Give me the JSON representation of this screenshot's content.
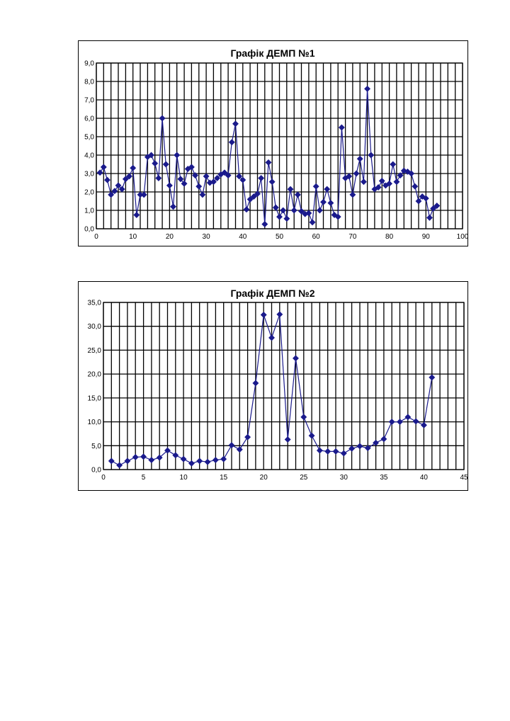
{
  "chart_data": [
    {
      "type": "scatter",
      "title": "Графік ДЕМП №1",
      "xlabel": "",
      "ylabel": "",
      "xlim": [
        0,
        100
      ],
      "ylim": [
        0,
        9
      ],
      "xticks": [
        0,
        10,
        20,
        30,
        40,
        50,
        60,
        70,
        80,
        90,
        100
      ],
      "yticks": [
        "0,0",
        "1,0",
        "2,0",
        "3,0",
        "4,0",
        "5,0",
        "6,0",
        "7,0",
        "8,0",
        "9,0"
      ],
      "grid": true,
      "legend": "none",
      "color": "#1a1a8c",
      "series": [
        {
          "x": [
            1,
            2,
            3,
            4,
            5,
            6,
            7,
            8,
            9,
            10,
            11,
            12,
            13,
            14,
            15,
            16,
            17,
            18,
            19,
            20,
            21,
            22,
            23,
            24,
            25,
            26,
            27,
            28,
            29,
            30,
            31,
            32,
            33,
            34,
            35,
            36,
            37,
            38,
            39,
            40,
            41,
            42,
            43,
            44,
            45,
            46,
            47,
            48,
            49,
            50,
            51,
            52,
            53,
            54,
            55,
            56,
            57,
            58,
            59,
            60,
            61,
            62,
            63,
            64,
            65,
            66,
            67,
            68,
            69,
            70,
            71,
            72,
            73,
            74,
            75,
            76,
            77,
            78,
            79,
            80,
            81,
            82,
            83,
            84,
            85,
            86,
            87,
            88,
            89,
            90,
            91,
            92,
            93
          ],
          "y": [
            3.05,
            3.35,
            2.65,
            1.85,
            2.05,
            2.35,
            2.15,
            2.7,
            2.85,
            3.3,
            0.75,
            1.85,
            1.85,
            3.9,
            4.0,
            3.55,
            2.75,
            6.0,
            3.5,
            2.35,
            1.2,
            4.0,
            2.7,
            2.45,
            3.25,
            3.35,
            2.9,
            2.3,
            1.85,
            2.85,
            2.5,
            2.55,
            2.75,
            2.95,
            3.05,
            2.9,
            4.7,
            5.7,
            2.85,
            2.65,
            1.05,
            1.6,
            1.75,
            1.9,
            2.75,
            0.25,
            3.6,
            2.55,
            1.15,
            0.65,
            1.0,
            0.55,
            2.15,
            1.0,
            1.85,
            0.95,
            0.8,
            0.85,
            0.35,
            2.3,
            1.0,
            1.45,
            2.15,
            1.4,
            0.75,
            0.65,
            5.5,
            2.75,
            2.85,
            1.85,
            3.0,
            3.8,
            2.55,
            7.6,
            4.0,
            2.15,
            2.25,
            2.6,
            2.35,
            2.45,
            3.5,
            2.55,
            2.9,
            3.15,
            3.1,
            3.0,
            2.3,
            1.5,
            1.75,
            1.65,
            0.6,
            1.1,
            1.25
          ]
        }
      ]
    },
    {
      "type": "scatter",
      "title": "Графік ДЕМП №2",
      "xlabel": "",
      "ylabel": "",
      "xlim": [
        0,
        45
      ],
      "ylim": [
        0,
        35
      ],
      "xticks": [
        0,
        5,
        10,
        15,
        20,
        25,
        30,
        35,
        40,
        45
      ],
      "yticks": [
        "0,0",
        "5,0",
        "10,0",
        "15,0",
        "20,0",
        "25,0",
        "30,0",
        "35,0"
      ],
      "grid": true,
      "legend": "none",
      "color": "#1a1a8c",
      "series": [
        {
          "x": [
            1,
            2,
            3,
            4,
            5,
            6,
            7,
            8,
            9,
            10,
            11,
            12,
            13,
            14,
            15,
            16,
            17,
            18,
            19,
            20,
            21,
            22,
            23,
            24,
            25,
            26,
            27,
            28,
            29,
            30,
            31,
            32,
            33,
            34,
            35,
            36,
            37,
            38,
            39,
            40,
            41
          ],
          "y": [
            1.8,
            0.9,
            1.8,
            2.6,
            2.7,
            2.0,
            2.5,
            4.0,
            3.0,
            2.2,
            1.3,
            1.8,
            1.6,
            2.0,
            2.2,
            5.1,
            4.2,
            6.8,
            18.1,
            32.4,
            27.6,
            32.5,
            6.3,
            23.3,
            11.0,
            7.1,
            4.0,
            3.8,
            3.8,
            3.4,
            4.4,
            4.9,
            4.5,
            5.6,
            6.4,
            10.0,
            10.0,
            11.0,
            10.1,
            9.3,
            19.3
          ]
        }
      ]
    }
  ]
}
